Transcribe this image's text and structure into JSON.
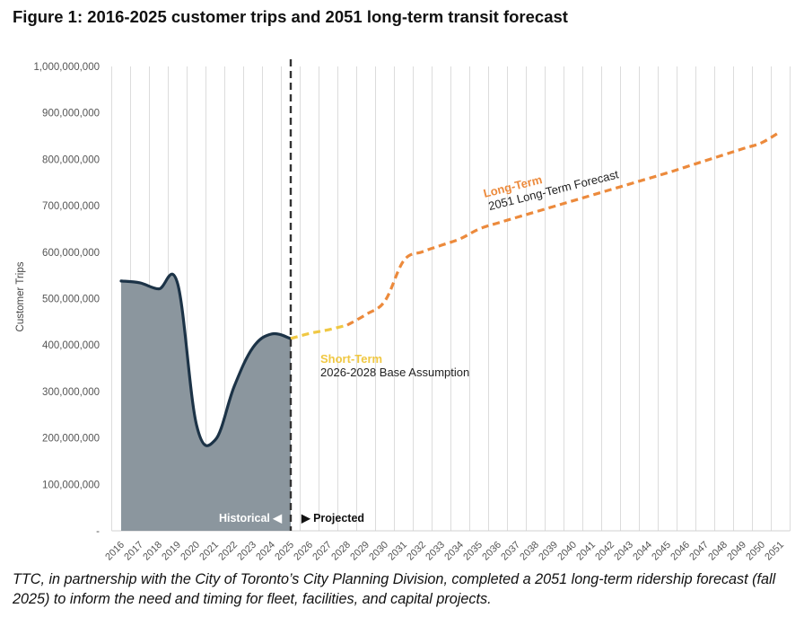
{
  "title": "Figure 1: 2016-2025 customer trips and 2051 long-term transit forecast",
  "caption": "TTC, in partnership with the City of Toronto’s City Planning Division, completed a 2051 long-term ridership forecast (fall 2025) to inform the need and timing for fleet, facilities, and capital projects.",
  "colors": {
    "historical_fill": "#8b969e",
    "historical_line": "#1c3347",
    "short_term": "#f0c843",
    "long_term": "#ec8a3c",
    "divider": "#333333",
    "grid": "#dcdcdc"
  },
  "chart_data": {
    "type": "area",
    "title": "Figure 1: 2016-2025 customer trips and 2051 long-term transit forecast",
    "xlabel": "",
    "ylabel": "Customer Trips",
    "ylim": [
      0,
      1000000000
    ],
    "yticks": [
      0,
      100000000,
      200000000,
      300000000,
      400000000,
      500000000,
      600000000,
      700000000,
      800000000,
      900000000,
      1000000000
    ],
    "ytick_labels": [
      "-",
      "100,000,000",
      "200,000,000",
      "300,000,000",
      "400,000,000",
      "500,000,000",
      "600,000,000",
      "700,000,000",
      "800,000,000",
      "900,000,000",
      "1,000,000,000"
    ],
    "grid": "vertical",
    "categories": [
      "2016",
      "2017",
      "2018",
      "2019",
      "2020",
      "2021",
      "2022",
      "2023",
      "2024",
      "2025",
      "2026",
      "2027",
      "2028",
      "2029",
      "2030",
      "2031",
      "2032",
      "2033",
      "2034",
      "2035",
      "2036",
      "2037",
      "2038",
      "2039",
      "2040",
      "2041",
      "2042",
      "2043",
      "2044",
      "2045",
      "2046",
      "2047",
      "2048",
      "2049",
      "2050",
      "2051"
    ],
    "series": [
      {
        "name": "Historical",
        "style": "area",
        "x": [
          "2016",
          "2017",
          "2018",
          "2019",
          "2020",
          "2021",
          "2022",
          "2023",
          "2024",
          "2025"
        ],
        "values": [
          538000000,
          534000000,
          521000000,
          532000000,
          228000000,
          196000000,
          311000000,
          395000000,
          424000000,
          414000000
        ]
      },
      {
        "name": "Short-Term",
        "style": "dashed",
        "x": [
          "2025",
          "2026",
          "2027",
          "2028"
        ],
        "values": [
          414000000,
          425000000,
          433000000,
          443000000
        ]
      },
      {
        "name": "Long-Term",
        "style": "dashed",
        "x": [
          "2028",
          "2029",
          "2030",
          "2031",
          "2032",
          "2033",
          "2034",
          "2035",
          "2036",
          "2037",
          "2038",
          "2039",
          "2040",
          "2041",
          "2042",
          "2043",
          "2044",
          "2045",
          "2046",
          "2047",
          "2048",
          "2049",
          "2050",
          "2051"
        ],
        "values": [
          443000000,
          466000000,
          495000000,
          582000000,
          601000000,
          615000000,
          629000000,
          650000000,
          663000000,
          675000000,
          687000000,
          699000000,
          711000000,
          723000000,
          735000000,
          747000000,
          759000000,
          771000000,
          784000000,
          797000000,
          810000000,
          823000000,
          836000000,
          860000000
        ]
      }
    ],
    "annotations": {
      "historical_label": "Historical ◀",
      "projected_label": "▶ Projected",
      "divider_at": "2025",
      "short_term_title": "Short-Term",
      "short_term_desc": "2026-2028 Base Assumption",
      "long_term_title": "Long-Term",
      "long_term_desc": "2051 Long-Term Forecast"
    }
  }
}
